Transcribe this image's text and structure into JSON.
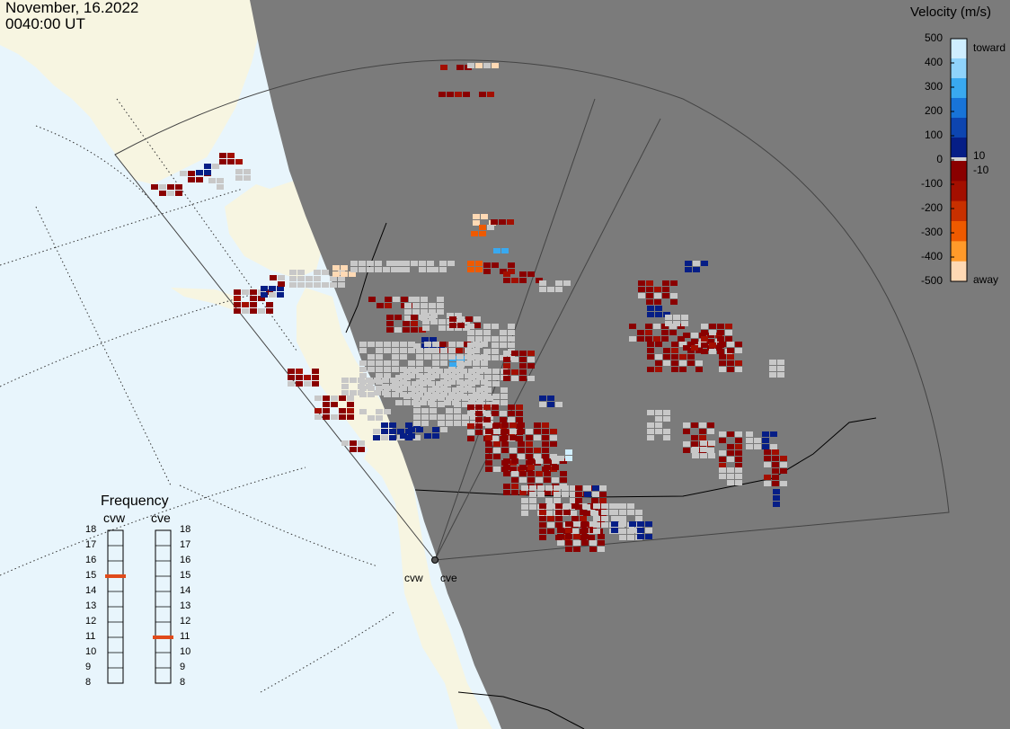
{
  "header": {
    "date": "November, 16.2022",
    "time": "0040:00 UT"
  },
  "legend": {
    "title": "Velocity (m/s)",
    "ticks": [
      "500",
      "400",
      "300",
      "200",
      "100",
      "0",
      "-100",
      "-200",
      "-300",
      "-400",
      "-500"
    ],
    "positive_marker": "10",
    "negative_marker": "-10",
    "toward_label": "toward",
    "away_label": "away",
    "toward_colors": [
      "#cfeeff",
      "#8fd3fb",
      "#39a9f0",
      "#1874d8",
      "#0d45b0",
      "#061e86"
    ],
    "away_colors": [
      "#8a0000",
      "#a30f00",
      "#c83000",
      "#ee5a00",
      "#ff9a2a",
      "#ffd9b4"
    ],
    "separator_color": "#d0d0d0"
  },
  "frequency": {
    "title": "Frequency",
    "radars": [
      {
        "name": "cvw",
        "value": 15
      },
      {
        "name": "cve",
        "value": 11
      }
    ],
    "ticks": [
      "18",
      "17",
      "16",
      "15",
      "14",
      "13",
      "12",
      "11",
      "10",
      "9",
      "8"
    ],
    "marker_color": "#e04a1a"
  },
  "radars": [
    {
      "name": "cvw"
    },
    {
      "name": "cve"
    }
  ],
  "map_colors": {
    "ocean": "#e8f5fc",
    "land": "#f7f5e1",
    "night": "#7b7b7b",
    "no_data": "#c8c8c8",
    "field_of_view": "#444444"
  }
}
